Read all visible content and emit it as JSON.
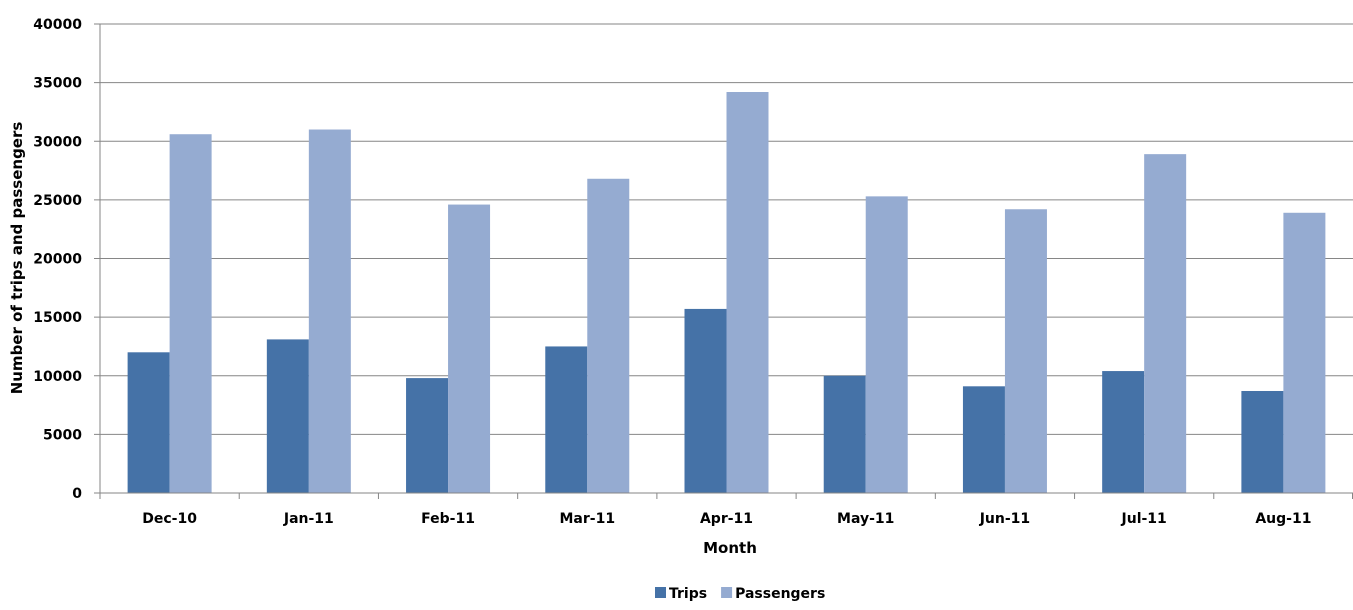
{
  "chart_data": {
    "type": "bar",
    "title": "",
    "xlabel": "Month",
    "ylabel": "Number of trips and passengers",
    "categories": [
      "Dec-10",
      "Jan-11",
      "Feb-11",
      "Mar-11",
      "Apr-11",
      "May-11",
      "Jun-11",
      "Jul-11",
      "Aug-11"
    ],
    "series": [
      {
        "name": "Trips",
        "color": "#4572A7",
        "values": [
          12000,
          13100,
          9800,
          12500,
          15700,
          10000,
          9100,
          10400,
          8700
        ]
      },
      {
        "name": "Passengers",
        "color": "#95ABD1",
        "values": [
          30600,
          31000,
          24600,
          26800,
          34200,
          25300,
          24200,
          28900,
          23900
        ]
      }
    ],
    "ylim": [
      0,
      40000
    ],
    "yticks": [
      "0",
      "5000",
      "10000",
      "15000",
      "20000",
      "25000",
      "30000",
      "35000",
      "40000"
    ],
    "grid": true,
    "gridline_color": "#868686",
    "legend_position": "bottom"
  }
}
